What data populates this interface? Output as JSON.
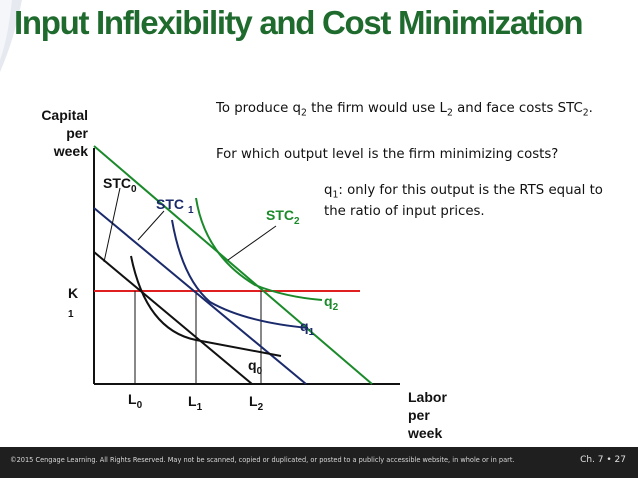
{
  "title": "Input Inflexibility and Cost Minimization",
  "text": {
    "line1_a": "To produce q",
    "line1_sub1": "2",
    "line1_b": " the firm would use L",
    "line1_sub2": "2",
    "line1_c": " and face costs STC",
    "line1_sub3": "2",
    "line1_d": ".",
    "line2": "For which output level is the firm minimizing costs?",
    "line3_a": "q",
    "line3_sub": "1",
    "line3_b": ": only for this output is the RTS equal to",
    "line4": "the ratio of input prices."
  },
  "axes": {
    "y_label": [
      "Capital",
      "per",
      "week"
    ],
    "x_label": [
      "Labor",
      "per",
      "week"
    ],
    "k_label": "K",
    "k_sub": "1"
  },
  "labels": {
    "stc0": "STC",
    "stc0_sub": "0",
    "stc1": "STC",
    "stc1_sub": "1",
    "stc2": "STC",
    "stc2_sub": "2",
    "q0": "q",
    "q0_sub": "0",
    "q1": "q",
    "q1_sub": "1",
    "q2": "q",
    "q2_sub": "2",
    "l0": "L",
    "l0_sub": "0",
    "l1": "L",
    "l1_sub": "1",
    "l2": "L",
    "l2_sub": "2"
  },
  "footer": {
    "copyright": "©2015 Cengage Learning. All Rights Reserved. May not be scanned, copied or duplicated, or posted to a publicly accessible website, in whole or in part.",
    "page": "Ch. 7 • 27"
  },
  "colors": {
    "title": "#1f6b2e",
    "green": "#1a8a2a",
    "navy": "#1a2a6b",
    "red": "#e02020",
    "black": "#111111"
  }
}
